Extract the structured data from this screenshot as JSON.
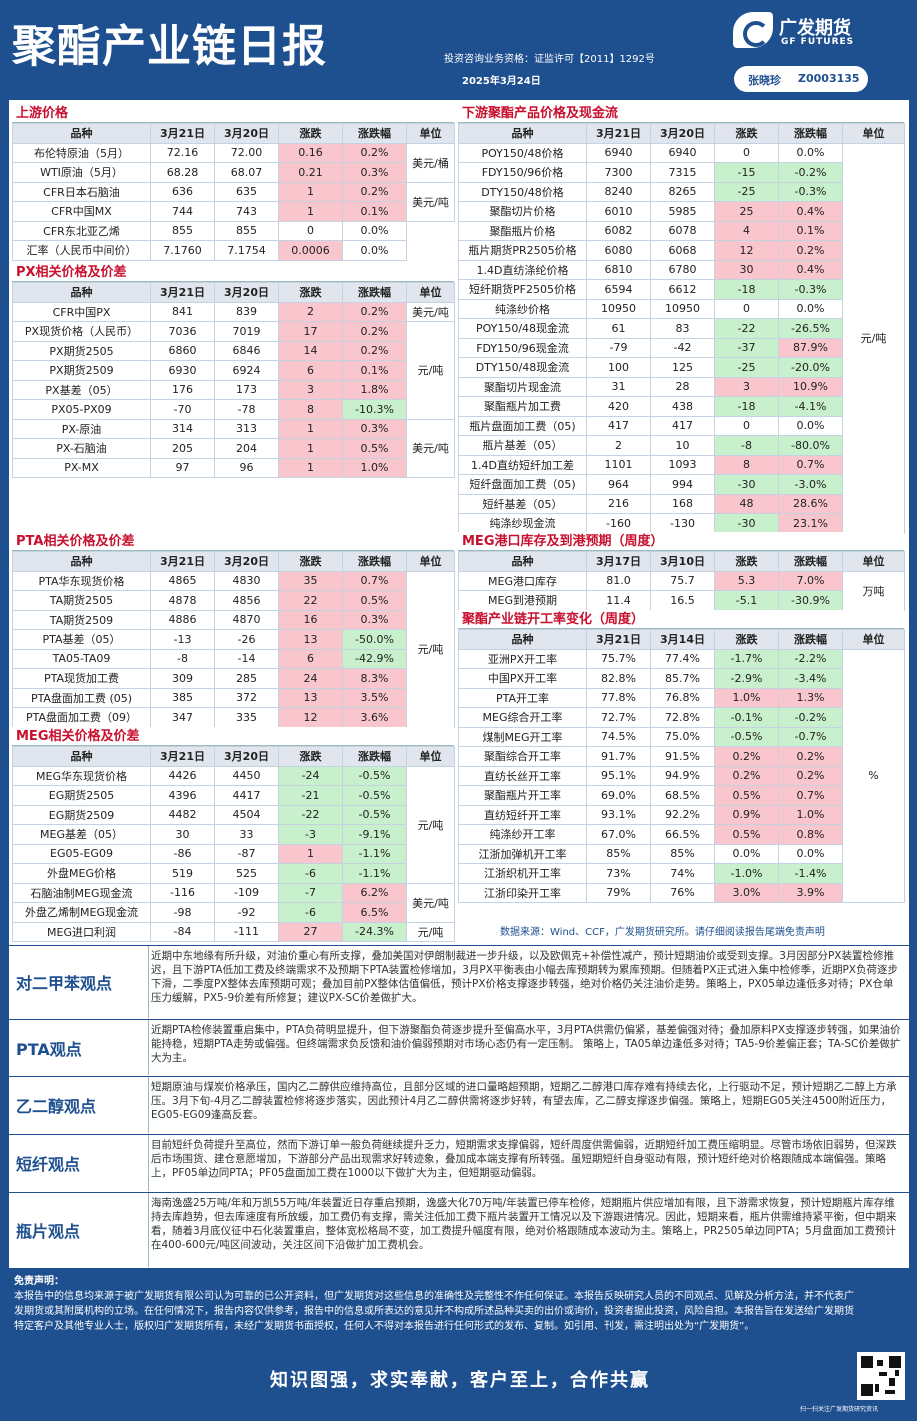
{
  "header": {
    "title": "聚酯产业链日报",
    "license": "投资咨询业务资格：证监许可【2011】1292号",
    "date": "2025年3月24日",
    "logo_cn": "广发期货",
    "logo_en": "GF FUTURES",
    "author": "张晓珍",
    "author_id": "Z0003135"
  },
  "colors": {
    "brand": "#1e4f8f",
    "up": "#f8c6cc",
    "down": "#c8f0cc",
    "accent": "#c8102e"
  },
  "upstream": {
    "title": "上游价格",
    "headers": [
      "品种",
      "3月21日",
      "3月20日",
      "涨跌",
      "涨跌幅",
      "单位"
    ],
    "rows": [
      [
        "布伦特原油（5月）",
        "72.16",
        "72.00",
        "0.16",
        "0.2%"
      ],
      [
        "WTI原油（5月）",
        "68.28",
        "68.07",
        "0.21",
        "0.3%"
      ],
      [
        "CFR日本石脑油",
        "636",
        "635",
        "1",
        "0.2%"
      ],
      [
        "CFR中国MX",
        "744",
        "743",
        "1",
        "0.1%"
      ],
      [
        "CFR东北亚乙烯",
        "855",
        "855",
        "0",
        "0.0%"
      ],
      [
        "汇率（人民币中间价）",
        "7.1760",
        "7.1754",
        "0.0006",
        "0.0%"
      ]
    ],
    "units": [
      "美元/桶",
      "美元/吨"
    ]
  },
  "px": {
    "title": "PX相关价格及价差",
    "headers": [
      "品种",
      "3月21日",
      "3月20日",
      "涨跌",
      "涨跌幅",
      "单位"
    ],
    "rows": [
      [
        "CFR中国PX",
        "841",
        "839",
        "2",
        "0.2%"
      ],
      [
        "PX现货价格（人民币）",
        "7036",
        "7019",
        "17",
        "0.2%"
      ],
      [
        "PX期货2505",
        "6860",
        "6846",
        "14",
        "0.2%"
      ],
      [
        "PX期货2509",
        "6930",
        "6924",
        "6",
        "0.1%"
      ],
      [
        "PX基差（05）",
        "176",
        "173",
        "3",
        "1.8%"
      ],
      [
        "PX05-PX09",
        "-70",
        "-78",
        "8",
        "-10.3%"
      ],
      [
        "PX-原油",
        "314",
        "313",
        "1",
        "0.3%"
      ],
      [
        "PX-石脑油",
        "205",
        "204",
        "1",
        "0.5%"
      ],
      [
        "PX-MX",
        "97",
        "96",
        "1",
        "1.0%"
      ]
    ],
    "units": [
      "美元/吨",
      "元/吨",
      "美元/吨"
    ]
  },
  "pta": {
    "title": "PTA相关价格及价差",
    "headers": [
      "品种",
      "3月21日",
      "3月20日",
      "涨跌",
      "涨跌幅",
      "单位"
    ],
    "rows": [
      [
        "PTA华东现货价格",
        "4865",
        "4830",
        "35",
        "0.7%"
      ],
      [
        "TA期货2505",
        "4878",
        "4856",
        "22",
        "0.5%"
      ],
      [
        "TA期货2509",
        "4886",
        "4870",
        "16",
        "0.3%"
      ],
      [
        "PTA基差（05）",
        "-13",
        "-26",
        "13",
        "-50.0%"
      ],
      [
        "TA05-TA09",
        "-8",
        "-14",
        "6",
        "-42.9%"
      ],
      [
        "PTA现货加工费",
        "309",
        "285",
        "24",
        "8.3%"
      ],
      [
        "PTA盘面加工费 (05)",
        "385",
        "372",
        "13",
        "3.5%"
      ],
      [
        "PTA盘面加工费（09）",
        "347",
        "335",
        "12",
        "3.6%"
      ]
    ],
    "units": [
      "元/吨"
    ]
  },
  "meg": {
    "title": "MEG相关价格及价差",
    "headers": [
      "品种",
      "3月21日",
      "3月20日",
      "涨跌",
      "涨跌幅",
      "单位"
    ],
    "rows": [
      [
        "MEG华东现货价格",
        "4426",
        "4450",
        "-24",
        "-0.5%"
      ],
      [
        "EG期货2505",
        "4396",
        "4417",
        "-21",
        "-0.5%"
      ],
      [
        "EG期货2509",
        "4482",
        "4504",
        "-22",
        "-0.5%"
      ],
      [
        "MEG基差（05）",
        "30",
        "33",
        "-3",
        "-9.1%"
      ],
      [
        "EG05-EG09",
        "-86",
        "-87",
        "1",
        "-1.1%"
      ],
      [
        "外盘MEG价格",
        "519",
        "525",
        "-6",
        "-1.1%"
      ],
      [
        "石脑油制MEG现金流",
        "-116",
        "-109",
        "-7",
        "6.2%"
      ],
      [
        "外盘乙烯制MEG现金流",
        "-98",
        "-92",
        "-6",
        "6.5%"
      ],
      [
        "MEG进口利润",
        "-84",
        "-111",
        "27",
        "-24.3%"
      ]
    ],
    "units": [
      "元/吨",
      "美元/吨",
      "元/吨"
    ]
  },
  "downstream": {
    "title": "下游聚酯产品价格及现金流",
    "headers": [
      "品种",
      "3月21日",
      "3月20日",
      "涨跌",
      "涨跌幅",
      "单位"
    ],
    "rows": [
      [
        "POY150/48价格",
        "6940",
        "6940",
        "0",
        "0.0%"
      ],
      [
        "FDY150/96价格",
        "7300",
        "7315",
        "-15",
        "-0.2%"
      ],
      [
        "DTY150/48价格",
        "8240",
        "8265",
        "-25",
        "-0.3%"
      ],
      [
        "聚酯切片价格",
        "6010",
        "5985",
        "25",
        "0.4%"
      ],
      [
        "聚酯瓶片价格",
        "6082",
        "6078",
        "4",
        "0.1%"
      ],
      [
        "瓶片期货PR2505价格",
        "6080",
        "6068",
        "12",
        "0.2%"
      ],
      [
        "1.4D直纺涤纶价格",
        "6810",
        "6780",
        "30",
        "0.4%"
      ],
      [
        "短纤期货PF2505价格",
        "6594",
        "6612",
        "-18",
        "-0.3%"
      ],
      [
        "纯涤纱价格",
        "10950",
        "10950",
        "0",
        "0.0%"
      ],
      [
        "POY150/48现金流",
        "61",
        "83",
        "-22",
        "-26.5%"
      ],
      [
        "FDY150/96现金流",
        "-79",
        "-42",
        "-37",
        "87.9%"
      ],
      [
        "DTY150/48现金流",
        "100",
        "125",
        "-25",
        "-20.0%"
      ],
      [
        "聚酯切片现金流",
        "31",
        "28",
        "3",
        "10.9%"
      ],
      [
        "聚酯瓶片加工费",
        "420",
        "438",
        "-18",
        "-4.1%"
      ],
      [
        "瓶片盘面加工费（05)",
        "417",
        "417",
        "0",
        "0.0%"
      ],
      [
        "瓶片基差（05）",
        "2",
        "10",
        "-8",
        "-80.0%"
      ],
      [
        "1.4D直纺短纤加工差",
        "1101",
        "1093",
        "8",
        "0.7%"
      ],
      [
        "短纤盘面加工费（05)",
        "964",
        "994",
        "-30",
        "-3.0%"
      ],
      [
        "短纤基差（05）",
        "216",
        "168",
        "48",
        "28.6%"
      ],
      [
        "纯涤纱现金流",
        "-160",
        "-130",
        "-30",
        "23.1%"
      ]
    ],
    "units": [
      "元/吨"
    ]
  },
  "megport": {
    "title": "MEG港口库存及到港预期（周度）",
    "headers": [
      "品种",
      "3月17日",
      "3月10日",
      "涨跌",
      "涨跌幅",
      "单位"
    ],
    "rows": [
      [
        "MEG港口库存",
        "81.0",
        "75.7",
        "5.3",
        "7.0%"
      ],
      [
        "MEG到港预期",
        "11.4",
        "16.5",
        "-5.1",
        "-30.9%"
      ]
    ],
    "units": [
      "万吨"
    ]
  },
  "rates": {
    "title": "聚酯产业链开工率变化（周度）",
    "headers": [
      "品种",
      "3月21日",
      "3月14日",
      "涨跌",
      "涨跌幅",
      "单位"
    ],
    "rows": [
      [
        "亚洲PX开工率",
        "75.7%",
        "77.4%",
        "-1.7%",
        "-2.2%"
      ],
      [
        "中国PX开工率",
        "82.8%",
        "85.7%",
        "-2.9%",
        "-3.4%"
      ],
      [
        "PTA开工率",
        "77.8%",
        "76.8%",
        "1.0%",
        "1.3%"
      ],
      [
        "MEG综合开工率",
        "72.7%",
        "72.8%",
        "-0.1%",
        "-0.2%"
      ],
      [
        "煤制MEG开工率",
        "74.5%",
        "75.0%",
        "-0.5%",
        "-0.7%"
      ],
      [
        "聚酯综合开工率",
        "91.7%",
        "91.5%",
        "0.2%",
        "0.2%"
      ],
      [
        "直纺长丝开工率",
        "95.1%",
        "94.9%",
        "0.2%",
        "0.2%"
      ],
      [
        "聚酯瓶片开工率",
        "69.0%",
        "68.5%",
        "0.5%",
        "0.7%"
      ],
      [
        "直纺短纤开工率",
        "93.1%",
        "92.2%",
        "0.9%",
        "1.0%"
      ],
      [
        "纯涤纱开工率",
        "67.0%",
        "66.5%",
        "0.5%",
        "0.8%"
      ],
      [
        "江浙加弹机开工率",
        "85%",
        "85%",
        "0.0%",
        "0.0%"
      ],
      [
        "江浙织机开工率",
        "73%",
        "74%",
        "-1.0%",
        "-1.4%"
      ],
      [
        "江浙印染开工率",
        "79%",
        "76%",
        "3.0%",
        "3.9%"
      ]
    ],
    "units": [
      "%"
    ]
  },
  "source": "数据来源：Wind、CCF，广发期货研究所。请仔细阅读报告尾端免责声明",
  "opinions": [
    {
      "label": "对二甲苯观点",
      "text": "近期中东地缘有所升级，对油价重心有所支撑，叠加美国对伊朗制裁进一步升级，以及欧佩克+补偿性减产，预计短期油价或受到支撑。3月因部分PX装置检修推迟，且下游PTA低加工费及终端需求不及预期下PTA装置检修增加，3月PX平衡表由小幅去库预期转为累库预期。但随着PX正式进入集中检修季，近期PX负荷逐步下滑，二季度PX整体去库预期可观；叠加目前PX整体估值偏低，预计PX价格支撑逐步转强，绝对价格仍关注油价走势。策略上，PX05单边逢低多对待；PX仓单压力缓解，PX5-9价差有所修复；建议PX-SC价差做扩大。"
    },
    {
      "label": "PTA观点",
      "text": "近期PTA检修装置重启集中，PTA负荷明显提升，但下游聚酯负荷逐步提升至偏高水平，3月PTA供需仍偏紧，基差偏强对待；叠加原料PX支撑逐步转强，如果油价能持稳，短期PTA走势或偏强。但终端需求负反馈和油价偏弱预期对市场心态仍有一定压制。 策略上，TA05单边逢低多对待；TA5-9价差偏正套；TA-SC价差做扩大为主。"
    },
    {
      "label": "乙二醇观点",
      "text": "短期原油与煤炭价格承压，国内乙二醇供应维持高位，且部分区域的进口量略超预期，短期乙二醇港口库存难有持续去化，上行驱动不足，预计短期乙二醇上方承压。3月下旬-4月乙二醇装置检修将逐步落实，因此预计4月乙二醇供需将逐步好转，有望去库，乙二醇支撑逐步偏强。策略上，短期EG05关注4500附近压力，EG05-EG09逢高反套。"
    },
    {
      "label": "短纤观点",
      "text": "目前短纤负荷提升至高位，然而下游订单一般负荷继续提升乏力，短期需求支撑偏弱，短纤周度供需偏弱，近期短纤加工费压缩明显。尽管市场依旧弱势，但深跌后市场围货、建仓意愿增加，下游部分产品出现需求好转迹象，叠加成本端支撑有所转强。虽短期短纤自身驱动有限，预计短纤绝对价格跟随成本端偏强。策略上，PF05单边同PTA；PF05盘面加工费在1000以下做扩大为主，但短期驱动偏弱。"
    },
    {
      "label": "瓶片观点",
      "text": "海南逸盛25万吨/年和万凯55万吨/年装置近日存重启预期，逸盛大化70万吨/年装置已停车检修，短期瓶片供应增加有限，且下游需求恢复，预计短期瓶片库存维持去库趋势，但去库速度有所放缓，加工费仍有支撑，需关注低加工费下瓶片装置开工情况以及下游跟进情况。因此，短期来看，瓶片供需维持紧平衡，但中期来看，随着3月底仪征中石化装置重启，整体宽松格局不变，加工费提升幅度有限，绝对价格跟随成本波动为主。策略上，PR2505单边同PTA；5月盘面加工费预计在400-600元/吨区间波动，关注区间下沿做扩加工费机会。"
    }
  ],
  "disclaimer": {
    "title": "免责声明：",
    "text": "本报告中的信息均来源于被广发期货有限公司认为可靠的已公开资料，但广发期货对这些信息的准确性及完整性不作任何保证。本报告反映研究人员的不同观点、见解及分析方法，并不代表广发期货或其附属机构的立场。在任何情况下，报告内容仅供参考，报告中的信息或所表达的意见并不构成所述品种买卖的出价或询价，投资者据此投资，风险自担。本报告旨在发送给广发期货特定客户及其他专业人士，版权归广发期货所有，未经广发期货书面授权，任何人不得对本报告进行任何形式的发布、复制。如引用、刊发，需注明出处为“广发期货”。"
  },
  "slogan": "知识图强，求实奉献，客户至上，合作共赢",
  "qr_caption": "扫一扫关注广发期货研究资讯"
}
